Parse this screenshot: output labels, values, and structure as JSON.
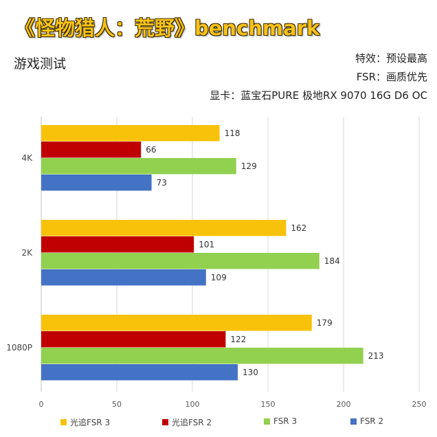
{
  "header": {
    "title": "《怪物猎人：荒野》benchmark",
    "subtitle": "游戏测试",
    "info": [
      "特效：预设最高",
      "FSR：画质优先",
      "显卡：蓝宝石PURE 极地RX 9070 16G D6 OC"
    ]
  },
  "chart_data": {
    "type": "bar",
    "orientation": "horizontal",
    "categories": [
      "4K",
      "2K",
      "1080P"
    ],
    "series": [
      {
        "name": "光追FSR 3",
        "color": "#f9c20a",
        "values": [
          118,
          162,
          179
        ]
      },
      {
        "name": "光追FSR 2",
        "color": "#c00000",
        "values": [
          66,
          101,
          122
        ]
      },
      {
        "name": "FSR 3",
        "color": "#92d050",
        "values": [
          129,
          184,
          213
        ]
      },
      {
        "name": "FSR 2",
        "color": "#4472c4",
        "values": [
          73,
          109,
          130
        ]
      }
    ],
    "xlim": [
      0,
      250
    ],
    "xticks": [
      0,
      50,
      100,
      150,
      200,
      250
    ],
    "grid": true,
    "legend_position": "bottom"
  }
}
